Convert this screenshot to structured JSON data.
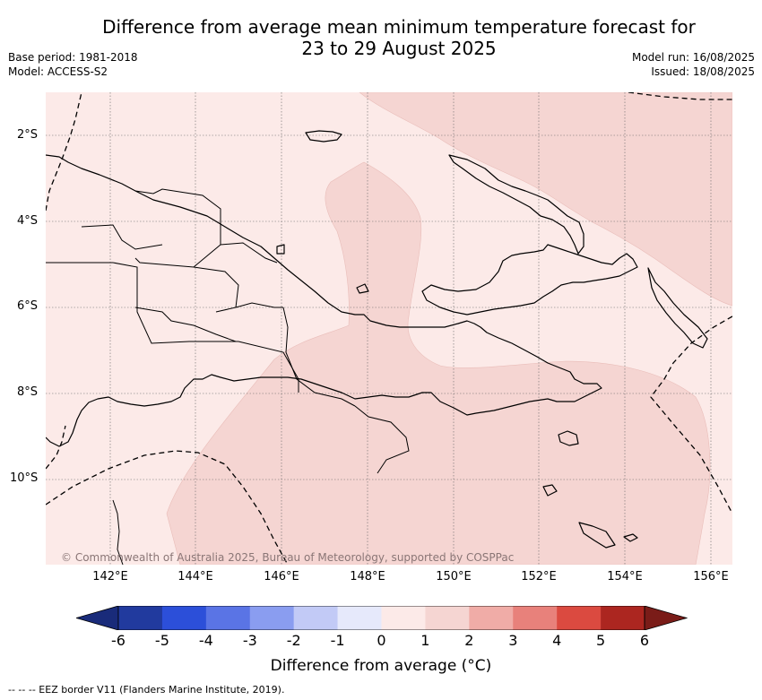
{
  "title_line1": "Difference from average mean minimum temperature forecast for",
  "title_line2": "23 to 29 August 2025",
  "meta_left": {
    "base_period": "Base period: 1981-2018",
    "model": "Model: ACCESS-S2"
  },
  "meta_right": {
    "model_run": "Model run: 16/08/2025",
    "issued": "Issued: 18/08/2025"
  },
  "map": {
    "lon_range": [
      140.6,
      156.6
    ],
    "lat_range": [
      -12.0,
      -1.0
    ],
    "lat_ticks": [
      "2°S",
      "4°S",
      "6°S",
      "8°S",
      "10°S"
    ],
    "lon_ticks": [
      "142°E",
      "144°E",
      "146°E",
      "148°E",
      "150°E",
      "152°E",
      "154°E",
      "156°E"
    ],
    "fill_colors": {
      "zero_to_one": "#fceae8",
      "one_to_two": "#f5d5d2"
    },
    "copyright": "© Commonwealth of Australia 2025, Bureau of Meteorology, supported by COSPPac"
  },
  "colorbar": {
    "ticks": [
      "-6",
      "-5",
      "-4",
      "-3",
      "-2",
      "-1",
      "0",
      "1",
      "2",
      "3",
      "4",
      "5",
      "6"
    ],
    "colors": [
      "#213a9e",
      "#2c4fd9",
      "#5a74e5",
      "#8a9df0",
      "#c2caf6",
      "#e6e9fb",
      "#fceae8",
      "#f5d5d2",
      "#f0aca7",
      "#e8817b",
      "#db4a40",
      "#ac2620"
    ],
    "low_extend_color": "#192b7a",
    "high_extend_color": "#7a1c18",
    "label": "Difference from average (°C)"
  },
  "footer": "-- -- -- EEZ border V11 (Flanders Marine Institute, 2019)."
}
